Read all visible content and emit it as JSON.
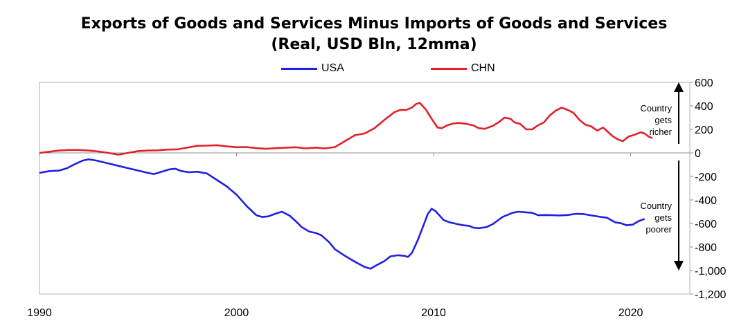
{
  "chart_data": {
    "type": "line",
    "title": "Exports of Goods and Services Minus Imports of Goods and Services",
    "subtitle": "(Real, USD Bln, 12mma)",
    "x_ticks": [
      "1990",
      "2000",
      "2010",
      "2020"
    ],
    "x_range": [
      1990,
      2023
    ],
    "y_ticks": [
      "600",
      "400",
      "200",
      "0",
      "-200",
      "-400",
      "-600",
      "-800",
      "-1,000",
      "-1,200"
    ],
    "ylim": [
      -1200,
      600
    ],
    "grid": false,
    "legend_position": "top-center",
    "annotations": {
      "richer": [
        "Country",
        "gets",
        "richer"
      ],
      "poorer": [
        "Country",
        "gets",
        "poorer"
      ]
    },
    "series": [
      {
        "name": "USA",
        "color": "#1f1fe6",
        "points": [
          [
            1990.0,
            -170
          ],
          [
            1990.5,
            -155
          ],
          [
            1991.0,
            -150
          ],
          [
            1991.4,
            -130
          ],
          [
            1991.8,
            -95
          ],
          [
            1992.2,
            -65
          ],
          [
            1992.5,
            -55
          ],
          [
            1992.9,
            -65
          ],
          [
            1993.5,
            -90
          ],
          [
            1994.0,
            -110
          ],
          [
            1994.5,
            -130
          ],
          [
            1995.0,
            -150
          ],
          [
            1995.5,
            -170
          ],
          [
            1995.8,
            -180
          ],
          [
            1996.2,
            -160
          ],
          [
            1996.6,
            -140
          ],
          [
            1996.9,
            -135
          ],
          [
            1997.2,
            -155
          ],
          [
            1997.6,
            -165
          ],
          [
            1998.0,
            -160
          ],
          [
            1998.5,
            -175
          ],
          [
            1999.0,
            -230
          ],
          [
            1999.5,
            -285
          ],
          [
            2000.0,
            -355
          ],
          [
            2000.5,
            -450
          ],
          [
            2001.0,
            -530
          ],
          [
            2001.3,
            -545
          ],
          [
            2001.6,
            -540
          ],
          [
            2002.0,
            -515
          ],
          [
            2002.3,
            -500
          ],
          [
            2002.7,
            -535
          ],
          [
            2003.0,
            -580
          ],
          [
            2003.3,
            -630
          ],
          [
            2003.7,
            -670
          ],
          [
            2004.0,
            -680
          ],
          [
            2004.3,
            -700
          ],
          [
            2004.7,
            -760
          ],
          [
            2005.0,
            -820
          ],
          [
            2005.5,
            -875
          ],
          [
            2006.0,
            -925
          ],
          [
            2006.5,
            -970
          ],
          [
            2006.8,
            -985
          ],
          [
            2007.1,
            -955
          ],
          [
            2007.5,
            -920
          ],
          [
            2007.8,
            -880
          ],
          [
            2008.2,
            -870
          ],
          [
            2008.5,
            -875
          ],
          [
            2008.7,
            -885
          ],
          [
            2008.9,
            -850
          ],
          [
            2009.2,
            -740
          ],
          [
            2009.5,
            -610
          ],
          [
            2009.7,
            -520
          ],
          [
            2009.9,
            -475
          ],
          [
            2010.1,
            -495
          ],
          [
            2010.5,
            -570
          ],
          [
            2010.8,
            -590
          ],
          [
            2011.2,
            -605
          ],
          [
            2011.5,
            -615
          ],
          [
            2011.8,
            -620
          ],
          [
            2012.0,
            -635
          ],
          [
            2012.3,
            -640
          ],
          [
            2012.7,
            -630
          ],
          [
            2013.0,
            -605
          ],
          [
            2013.5,
            -545
          ],
          [
            2014.0,
            -510
          ],
          [
            2014.3,
            -500
          ],
          [
            2014.7,
            -505
          ],
          [
            2015.0,
            -510
          ],
          [
            2015.3,
            -530
          ],
          [
            2015.7,
            -528
          ],
          [
            2016.0,
            -530
          ],
          [
            2016.4,
            -532
          ],
          [
            2016.8,
            -528
          ],
          [
            2017.2,
            -518
          ],
          [
            2017.6,
            -520
          ],
          [
            2018.0,
            -532
          ],
          [
            2018.5,
            -545
          ],
          [
            2018.8,
            -552
          ],
          [
            2019.2,
            -590
          ],
          [
            2019.5,
            -598
          ],
          [
            2019.8,
            -615
          ],
          [
            2020.1,
            -610
          ],
          [
            2020.4,
            -580
          ],
          [
            2020.7,
            -562
          ]
        ]
      },
      {
        "name": "CHN",
        "color": "#e0202a",
        "points": [
          [
            1990.0,
            0
          ],
          [
            1990.5,
            10
          ],
          [
            1991.0,
            20
          ],
          [
            1991.5,
            25
          ],
          [
            1992.0,
            25
          ],
          [
            1992.5,
            20
          ],
          [
            1993.0,
            12
          ],
          [
            1993.5,
            0
          ],
          [
            1994.0,
            -15
          ],
          [
            1994.5,
            0
          ],
          [
            1995.0,
            15
          ],
          [
            1995.5,
            20
          ],
          [
            1996.0,
            22
          ],
          [
            1996.5,
            28
          ],
          [
            1997.0,
            30
          ],
          [
            1997.5,
            45
          ],
          [
            1998.0,
            60
          ],
          [
            1998.5,
            62
          ],
          [
            1999.0,
            65
          ],
          [
            1999.5,
            55
          ],
          [
            2000.0,
            48
          ],
          [
            2000.5,
            50
          ],
          [
            2001.0,
            40
          ],
          [
            2001.5,
            35
          ],
          [
            2002.0,
            40
          ],
          [
            2002.5,
            45
          ],
          [
            2003.0,
            48
          ],
          [
            2003.5,
            38
          ],
          [
            2004.0,
            45
          ],
          [
            2004.5,
            38
          ],
          [
            2005.0,
            50
          ],
          [
            2005.5,
            100
          ],
          [
            2006.0,
            150
          ],
          [
            2006.5,
            165
          ],
          [
            2007.0,
            210
          ],
          [
            2007.5,
            280
          ],
          [
            2008.0,
            345
          ],
          [
            2008.3,
            365
          ],
          [
            2008.6,
            365
          ],
          [
            2008.9,
            385
          ],
          [
            2009.1,
            415
          ],
          [
            2009.3,
            425
          ],
          [
            2009.6,
            370
          ],
          [
            2009.9,
            290
          ],
          [
            2010.2,
            215
          ],
          [
            2010.4,
            210
          ],
          [
            2010.7,
            235
          ],
          [
            2011.0,
            250
          ],
          [
            2011.3,
            255
          ],
          [
            2011.6,
            248
          ],
          [
            2012.0,
            235
          ],
          [
            2012.3,
            210
          ],
          [
            2012.6,
            205
          ],
          [
            2013.0,
            230
          ],
          [
            2013.3,
            260
          ],
          [
            2013.6,
            300
          ],
          [
            2013.9,
            290
          ],
          [
            2014.1,
            260
          ],
          [
            2014.4,
            245
          ],
          [
            2014.7,
            200
          ],
          [
            2015.0,
            200
          ],
          [
            2015.3,
            235
          ],
          [
            2015.6,
            260
          ],
          [
            2015.9,
            320
          ],
          [
            2016.2,
            360
          ],
          [
            2016.5,
            385
          ],
          [
            2016.8,
            365
          ],
          [
            2017.1,
            340
          ],
          [
            2017.4,
            280
          ],
          [
            2017.7,
            240
          ],
          [
            2018.0,
            225
          ],
          [
            2018.3,
            190
          ],
          [
            2018.6,
            215
          ],
          [
            2018.9,
            170
          ],
          [
            2019.1,
            140
          ],
          [
            2019.4,
            110
          ],
          [
            2019.6,
            100
          ],
          [
            2019.9,
            140
          ],
          [
            2020.2,
            155
          ],
          [
            2020.5,
            175
          ],
          [
            2020.7,
            165
          ],
          [
            2020.9,
            140
          ],
          [
            2021.1,
            125
          ]
        ]
      }
    ]
  }
}
